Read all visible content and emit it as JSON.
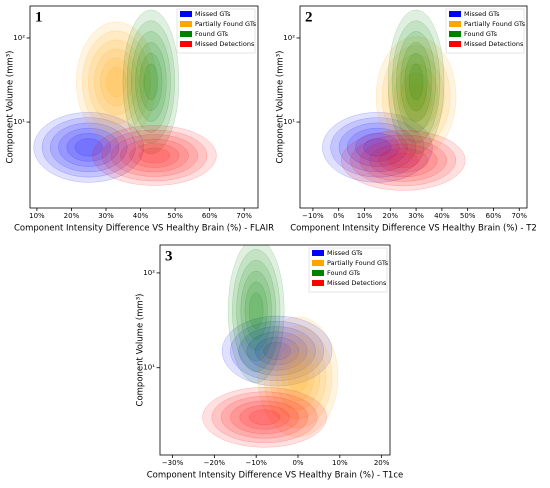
{
  "chart_data": [
    {
      "type": "kde",
      "panel_label": "1",
      "x_label": "Component Intensity Difference VS Healthy Brain (%) -  FLAIR",
      "y_label": "Component Volume (mm³)",
      "log_y": true,
      "legend": "upper right",
      "xlim": [
        8,
        74
      ],
      "xticks": [
        {
          "value": 10,
          "label": "10%"
        },
        {
          "value": 20,
          "label": "20%"
        },
        {
          "value": 30,
          "label": "30%"
        },
        {
          "value": 40,
          "label": "40%"
        },
        {
          "value": 50,
          "label": "50%"
        },
        {
          "value": 60,
          "label": "60%"
        },
        {
          "value": 70,
          "label": "70%"
        }
      ],
      "ylim": [
        0.95,
        240
      ],
      "yticks": [
        {
          "value": 10,
          "label": "10¹"
        },
        {
          "value": 100,
          "label": "10²"
        }
      ],
      "series": [
        {
          "name": "Missed GTs",
          "color": "#0000ff",
          "center": {
            "x": 25,
            "y": 5
          }
        },
        {
          "name": "Partially Found GTs",
          "color": "#ffa500",
          "center": {
            "x": 33,
            "y": 30
          }
        },
        {
          "name": "Found GTs",
          "color": "#008000",
          "center": {
            "x": 43,
            "y": 30
          }
        },
        {
          "name": "Missed Detections",
          "color": "#ff0000",
          "center": {
            "x": 44,
            "y": 4
          }
        }
      ]
    },
    {
      "type": "kde",
      "panel_label": "2",
      "x_label": "Component Intensity Difference VS Healthy Brain (%) - T2",
      "y_label": "Component Volume (mm³)",
      "log_y": true,
      "legend": "upper right",
      "xlim": [
        -15,
        73
      ],
      "xticks": [
        {
          "value": -10,
          "label": "−10%"
        },
        {
          "value": 0,
          "label": "0%"
        },
        {
          "value": 10,
          "label": "10%"
        },
        {
          "value": 20,
          "label": "20%"
        },
        {
          "value": 30,
          "label": "30%"
        },
        {
          "value": 40,
          "label": "40%"
        },
        {
          "value": 50,
          "label": "50%"
        },
        {
          "value": 60,
          "label": "60%"
        },
        {
          "value": 70,
          "label": "70%"
        }
      ],
      "ylim": [
        0.95,
        240
      ],
      "yticks": [
        {
          "value": 10,
          "label": "10¹"
        },
        {
          "value": 100,
          "label": "10²"
        }
      ],
      "series": [
        {
          "name": "Missed GTs",
          "color": "#0000ff",
          "center": {
            "x": 15,
            "y": 5
          }
        },
        {
          "name": "Partially Found GTs",
          "color": "#ffa500",
          "center": {
            "x": 30,
            "y": 20
          }
        },
        {
          "name": "Found GTs",
          "color": "#008000",
          "center": {
            "x": 30,
            "y": 30
          }
        },
        {
          "name": "Missed Detections",
          "color": "#ff0000",
          "center": {
            "x": 25,
            "y": 3.5
          }
        }
      ]
    },
    {
      "type": "kde",
      "panel_label": "3",
      "x_label": "Component Intensity Difference VS Healthy Brain (%) - T1ce",
      "y_label": "Component Volume (mm³)",
      "log_y": true,
      "legend": "upper right",
      "xlim": [
        -33,
        22
      ],
      "xticks": [
        {
          "value": -30,
          "label": "−30%"
        },
        {
          "value": -20,
          "label": "−20%"
        },
        {
          "value": -10,
          "label": "−10%"
        },
        {
          "value": 0,
          "label": "0%"
        },
        {
          "value": 10,
          "label": "10%"
        },
        {
          "value": 20,
          "label": "20%"
        }
      ],
      "ylim": [
        1.2,
        197
      ],
      "yticks": [
        {
          "value": 10,
          "label": "10¹"
        },
        {
          "value": 100,
          "label": "10²"
        }
      ],
      "series": [
        {
          "name": "Missed GTs",
          "color": "#0000ff",
          "center": {
            "x": -5,
            "y": 15
          }
        },
        {
          "name": "Partially Found GTs",
          "color": "#ffa500",
          "center": {
            "x": 0,
            "y": 8
          }
        },
        {
          "name": "Found GTs",
          "color": "#008000",
          "center": {
            "x": -10,
            "y": 40
          }
        },
        {
          "name": "Missed Detections",
          "color": "#ff0000",
          "center": {
            "x": -8,
            "y": 3
          }
        }
      ]
    }
  ]
}
